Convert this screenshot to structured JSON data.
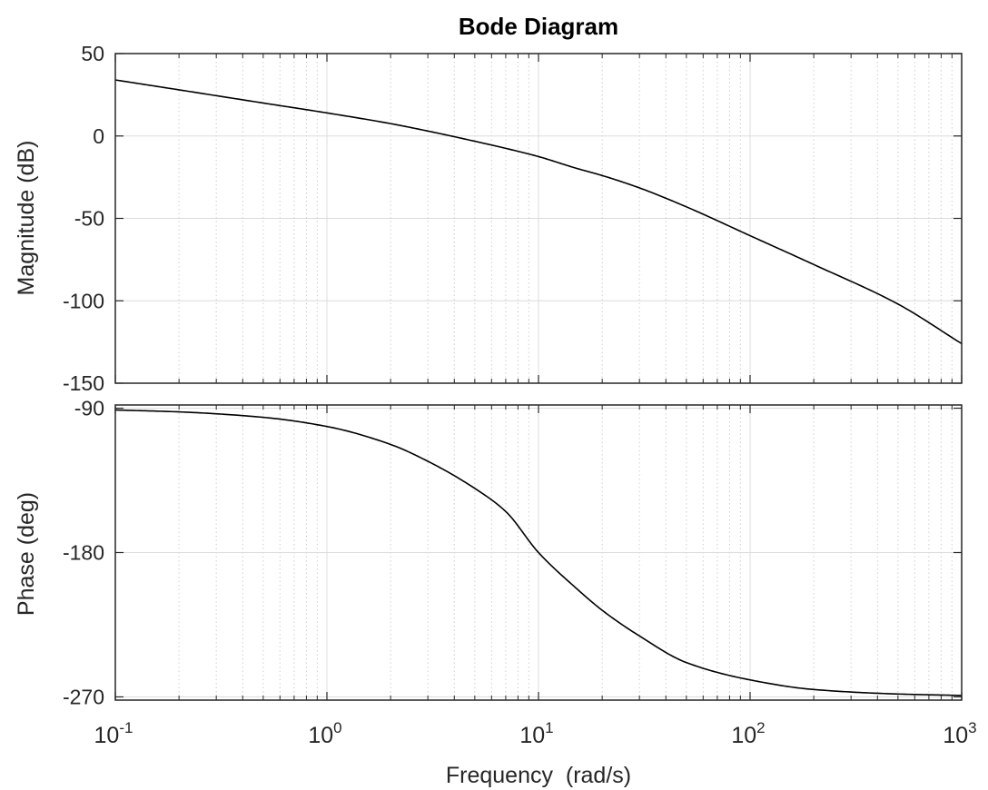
{
  "chart_data": [
    {
      "type": "line",
      "panel": "magnitude",
      "title": "Bode Diagram",
      "ylabel": "Magnitude (dB)",
      "xlabel": "",
      "xscale": "log",
      "xlim": [
        0.1,
        1000
      ],
      "ylim": [
        -150,
        50
      ],
      "yticks": [
        50,
        0,
        -50,
        -100,
        -150
      ],
      "ytick_labels": [
        "50",
        "0",
        "-50",
        "-100",
        "-150"
      ],
      "grid": true,
      "minor_grid": true,
      "series": [
        {
          "x": [
            0.1,
            0.2,
            0.5,
            1,
            2,
            3,
            5,
            7,
            10,
            15,
            20,
            30,
            50,
            100,
            200,
            500,
            1000
          ],
          "y": [
            34,
            28,
            20,
            14,
            7.5,
            3,
            -3.2,
            -7.5,
            -12.5,
            -19.5,
            -24,
            -31.5,
            -43,
            -60.5,
            -78,
            -102,
            -126
          ]
        }
      ],
      "line_color": "#000000"
    },
    {
      "type": "line",
      "panel": "phase",
      "title": "",
      "ylabel": "Phase (deg)",
      "xlabel": "Frequency  (rad/s)",
      "xscale": "log",
      "xlim": [
        0.1,
        1000
      ],
      "ylim": [
        -272,
        -88
      ],
      "yticks": [
        -90,
        -180,
        -270
      ],
      "ytick_labels": [
        "-90",
        "-180",
        "-270"
      ],
      "xticks": [
        0.1,
        1,
        10,
        100,
        1000
      ],
      "xtick_labels": [
        {
          "base": "10",
          "exp": "-1"
        },
        {
          "base": "10",
          "exp": "0"
        },
        {
          "base": "10",
          "exp": "1"
        },
        {
          "base": "10",
          "exp": "2"
        },
        {
          "base": "10",
          "exp": "3"
        }
      ],
      "grid": true,
      "minor_grid": true,
      "series": [
        {
          "x": [
            0.1,
            0.2,
            0.5,
            1,
            2,
            3,
            5,
            7,
            10,
            15,
            20,
            30,
            50,
            100,
            200,
            500,
            1000
          ],
          "y": [
            -91.1,
            -92.3,
            -95.7,
            -101.4,
            -112.6,
            -123.1,
            -140.0,
            -154.4,
            -180,
            -202,
            -216,
            -232,
            -248.6,
            -259.4,
            -265.4,
            -268.2,
            -269.1
          ]
        }
      ],
      "line_color": "#000000"
    }
  ]
}
